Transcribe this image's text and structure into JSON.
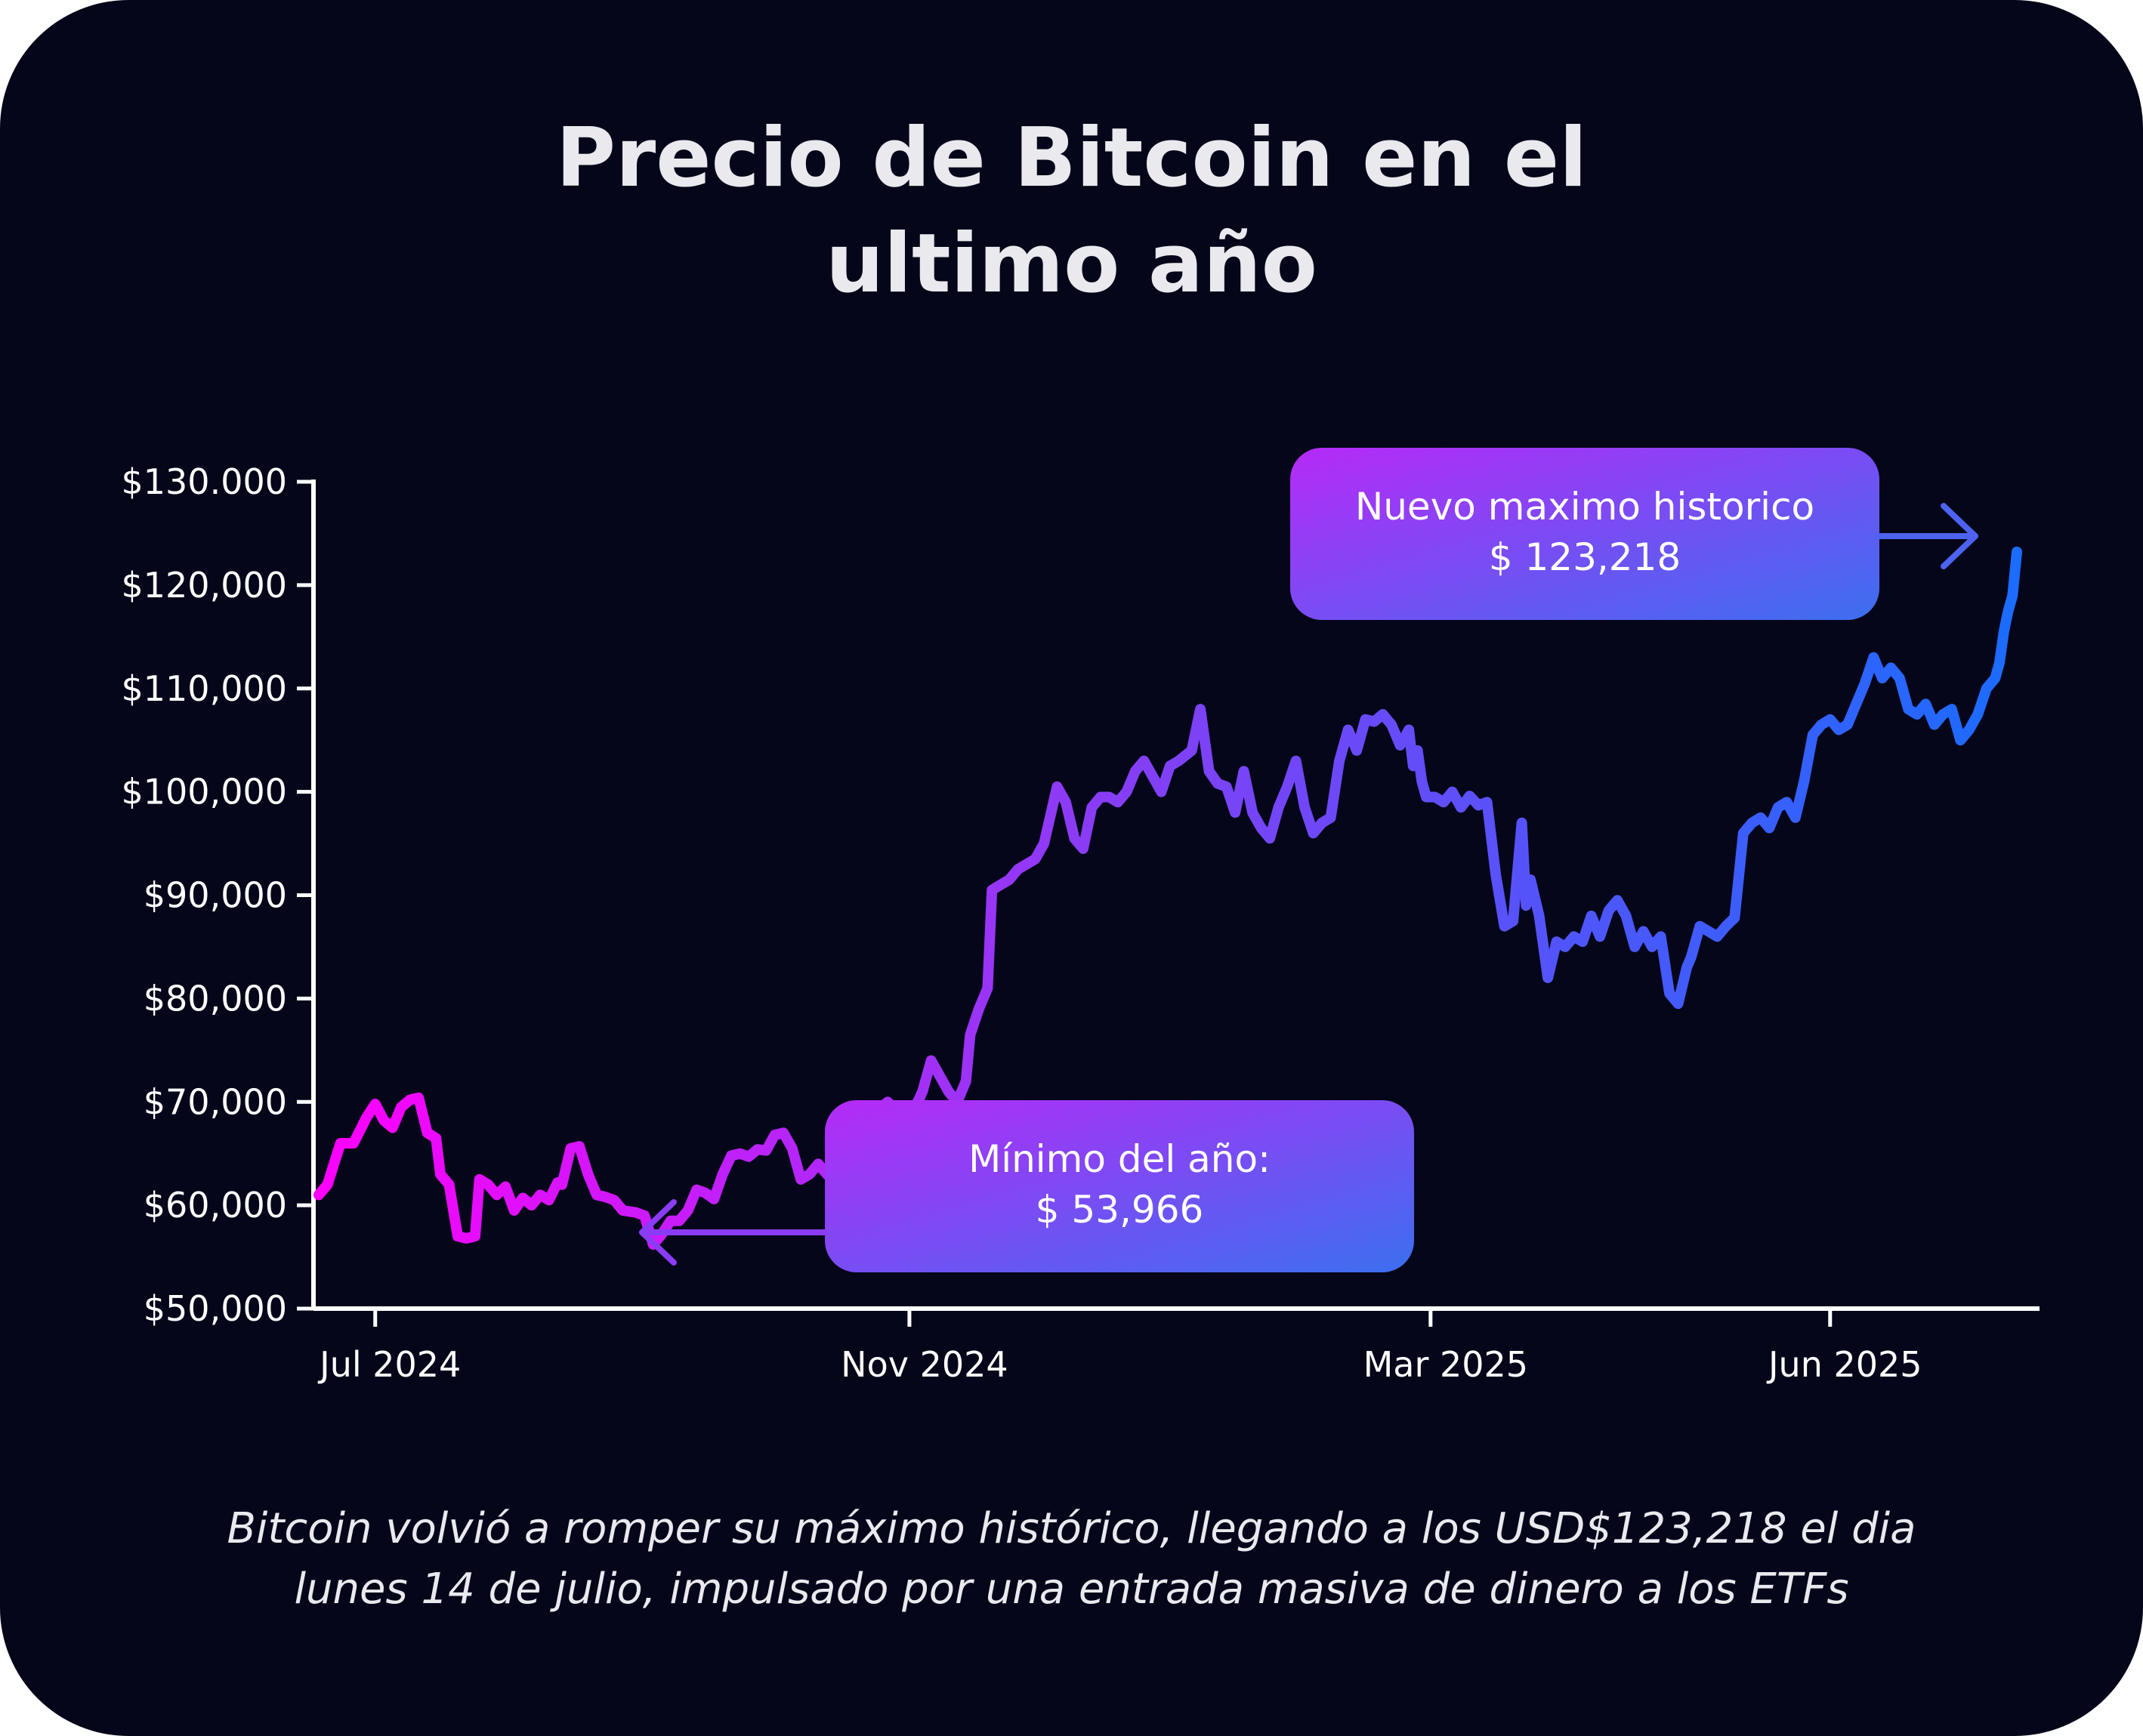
{
  "title": "Precio de Bitcoin en el\nultimo año",
  "caption": "Bitcoin volvió a romper su máximo histórico, llegando a los USD$123,218 el dia\nlunes 14 de julio, impulsado por una entrada masiva de dinero a los ETFs",
  "colors": {
    "background": "#05061a",
    "text": "#e9e9ee",
    "gradient_start": "#ff00ff",
    "gradient_mid": "#8a3cf5",
    "gradient_end": "#1a6cff",
    "callout_start": "#b62af7",
    "callout_end": "#3c6ff0"
  },
  "callouts": {
    "max": {
      "line1": "Nuevo maximo historico",
      "line2": "$ 123,218",
      "icon": "arrow-right-icon"
    },
    "min": {
      "line1": "Mínimo del año:",
      "line2": "$ 53,966",
      "icon": "arrow-left-icon"
    }
  },
  "chart_data": {
    "type": "line",
    "title": "Precio de Bitcoin en el ultimo año",
    "xlabel": "",
    "ylabel": "",
    "x_range": [
      "2024-06-18",
      "2025-07-14"
    ],
    "ylim": [
      50000,
      130000
    ],
    "yticks": [
      {
        "value": 50000,
        "label": "$50,000"
      },
      {
        "value": 60000,
        "label": "$60,000"
      },
      {
        "value": 70000,
        "label": "$70,000"
      },
      {
        "value": 80000,
        "label": "$80,000"
      },
      {
        "value": 90000,
        "label": "$90,000"
      },
      {
        "value": 100000,
        "label": "$100,000"
      },
      {
        "value": 110000,
        "label": "$110,000"
      },
      {
        "value": 120000,
        "label": "$120,000"
      },
      {
        "value": 130000,
        "label": "$130.000"
      }
    ],
    "xticks": [
      {
        "date": "2024-07-01",
        "label": "Jul 2024"
      },
      {
        "date": "2024-11-01",
        "label": "Nov 2024"
      },
      {
        "date": "2025-03-01",
        "label": "Mar 2025"
      },
      {
        "date": "2025-06-01",
        "label": "Jun 2025"
      }
    ],
    "grid": false,
    "legend": "none",
    "series": [
      {
        "points": [
          [
            "2024-06-18",
            61000
          ],
          [
            "2024-06-20",
            62000
          ],
          [
            "2024-06-23",
            66000
          ],
          [
            "2024-06-26",
            66000
          ],
          [
            "2024-06-29",
            68500
          ],
          [
            "2024-07-01",
            69800
          ],
          [
            "2024-07-03",
            68200
          ],
          [
            "2024-07-05",
            67500
          ],
          [
            "2024-07-07",
            69500
          ],
          [
            "2024-07-09",
            70200
          ],
          [
            "2024-07-11",
            70400
          ],
          [
            "2024-07-13",
            67000
          ],
          [
            "2024-07-15",
            66500
          ],
          [
            "2024-07-16",
            63000
          ],
          [
            "2024-07-18",
            62000
          ],
          [
            "2024-07-20",
            57000
          ],
          [
            "2024-07-22",
            56800
          ],
          [
            "2024-07-24",
            57000
          ],
          [
            "2024-07-25",
            62500
          ],
          [
            "2024-07-27",
            62000
          ],
          [
            "2024-07-29",
            61000
          ],
          [
            "2024-07-31",
            61800
          ],
          [
            "2024-08-02",
            59500
          ],
          [
            "2024-08-04",
            60700
          ],
          [
            "2024-08-06",
            60000
          ],
          [
            "2024-08-08",
            61000
          ],
          [
            "2024-08-10",
            60500
          ],
          [
            "2024-08-12",
            62200
          ],
          [
            "2024-08-13",
            62000
          ],
          [
            "2024-08-15",
            65500
          ],
          [
            "2024-08-17",
            65700
          ],
          [
            "2024-08-19",
            63000
          ],
          [
            "2024-08-21",
            61000
          ],
          [
            "2024-08-23",
            60800
          ],
          [
            "2024-08-25",
            60500
          ],
          [
            "2024-08-27",
            59500
          ],
          [
            "2024-08-30",
            59300
          ],
          [
            "2024-09-01",
            59000
          ],
          [
            "2024-09-03",
            56200
          ],
          [
            "2024-09-05",
            57200
          ],
          [
            "2024-09-07",
            58500
          ],
          [
            "2024-09-09",
            58500
          ],
          [
            "2024-09-11",
            59500
          ],
          [
            "2024-09-13",
            61500
          ],
          [
            "2024-09-15",
            61200
          ],
          [
            "2024-09-17",
            60600
          ],
          [
            "2024-09-19",
            63000
          ],
          [
            "2024-09-21",
            64800
          ],
          [
            "2024-09-23",
            65000
          ],
          [
            "2024-09-25",
            64700
          ],
          [
            "2024-09-27",
            65400
          ],
          [
            "2024-09-29",
            65300
          ],
          [
            "2024-10-01",
            66800
          ],
          [
            "2024-10-03",
            67000
          ],
          [
            "2024-10-05",
            65500
          ],
          [
            "2024-10-07",
            62500
          ],
          [
            "2024-10-09",
            63000
          ],
          [
            "2024-10-11",
            64000
          ],
          [
            "2024-10-13",
            63000
          ],
          [
            "2024-10-15",
            62200
          ],
          [
            "2024-10-17",
            64000
          ],
          [
            "2024-10-19",
            64700
          ],
          [
            "2024-10-21",
            68000
          ],
          [
            "2024-10-23",
            69500
          ],
          [
            "2024-10-25",
            69300
          ],
          [
            "2024-10-27",
            70000
          ],
          [
            "2024-10-29",
            69000
          ],
          [
            "2024-10-31",
            69600
          ],
          [
            "2024-11-02",
            69200
          ],
          [
            "2024-11-04",
            71000
          ],
          [
            "2024-11-06",
            74000
          ],
          [
            "2024-11-08",
            72500
          ],
          [
            "2024-11-10",
            71000
          ],
          [
            "2024-11-12",
            70000
          ],
          [
            "2024-11-14",
            72000
          ],
          [
            "2024-11-15",
            76500
          ],
          [
            "2024-11-17",
            79000
          ],
          [
            "2024-11-19",
            81000
          ],
          [
            "2024-11-20",
            90500
          ],
          [
            "2024-11-22",
            91000
          ],
          [
            "2024-11-24",
            91500
          ],
          [
            "2024-11-26",
            92500
          ],
          [
            "2024-11-28",
            93000
          ],
          [
            "2024-11-30",
            93500
          ],
          [
            "2024-12-02",
            95000
          ],
          [
            "2024-12-05",
            100500
          ],
          [
            "2024-12-07",
            99000
          ],
          [
            "2024-12-09",
            95500
          ],
          [
            "2024-12-11",
            94500
          ],
          [
            "2024-12-13",
            98500
          ],
          [
            "2024-12-15",
            99500
          ],
          [
            "2024-12-17",
            99500
          ],
          [
            "2024-12-19",
            99000
          ],
          [
            "2024-12-21",
            100000
          ],
          [
            "2024-12-23",
            102000
          ],
          [
            "2024-12-25",
            103000
          ],
          [
            "2024-12-27",
            101500
          ],
          [
            "2024-12-29",
            100000
          ],
          [
            "2024-12-31",
            102500
          ],
          [
            "2025-01-02",
            103000
          ],
          [
            "2025-01-05",
            104000
          ],
          [
            "2025-01-07",
            108000
          ],
          [
            "2025-01-09",
            102000
          ],
          [
            "2025-01-11",
            100800
          ],
          [
            "2025-01-13",
            100500
          ],
          [
            "2025-01-15",
            98000
          ],
          [
            "2025-01-17",
            102000
          ],
          [
            "2025-01-19",
            98000
          ],
          [
            "2025-01-21",
            96500
          ],
          [
            "2025-01-23",
            95500
          ],
          [
            "2025-01-25",
            98500
          ],
          [
            "2025-01-27",
            100500
          ],
          [
            "2025-01-29",
            103000
          ],
          [
            "2025-01-31",
            98500
          ],
          [
            "2025-02-02",
            96000
          ],
          [
            "2025-02-04",
            97000
          ],
          [
            "2025-02-06",
            97500
          ],
          [
            "2025-02-08",
            103000
          ],
          [
            "2025-02-10",
            106000
          ],
          [
            "2025-02-12",
            104000
          ],
          [
            "2025-02-14",
            107000
          ],
          [
            "2025-02-16",
            106800
          ],
          [
            "2025-02-18",
            107500
          ],
          [
            "2025-02-20",
            106500
          ],
          [
            "2025-02-22",
            104500
          ],
          [
            "2025-02-24",
            106000
          ],
          [
            "2025-02-25",
            102500
          ],
          [
            "2025-02-26",
            104000
          ],
          [
            "2025-02-27",
            101000
          ],
          [
            "2025-02-28",
            99500
          ],
          [
            "2025-03-02",
            99500
          ],
          [
            "2025-03-04",
            99000
          ],
          [
            "2025-03-06",
            100000
          ],
          [
            "2025-03-08",
            98500
          ],
          [
            "2025-03-10",
            99600
          ],
          [
            "2025-03-12",
            98700
          ],
          [
            "2025-03-14",
            99000
          ],
          [
            "2025-03-16",
            92000
          ],
          [
            "2025-03-18",
            87000
          ],
          [
            "2025-03-20",
            87500
          ],
          [
            "2025-03-22",
            97000
          ],
          [
            "2025-03-23",
            89000
          ],
          [
            "2025-03-24",
            91500
          ],
          [
            "2025-03-26",
            88000
          ],
          [
            "2025-03-28",
            82000
          ],
          [
            "2025-03-30",
            85500
          ],
          [
            "2025-04-01",
            85000
          ],
          [
            "2025-04-03",
            86000
          ],
          [
            "2025-04-05",
            85500
          ],
          [
            "2025-04-07",
            88000
          ],
          [
            "2025-04-09",
            86000
          ],
          [
            "2025-04-11",
            88500
          ],
          [
            "2025-04-13",
            89500
          ],
          [
            "2025-04-15",
            88000
          ],
          [
            "2025-04-17",
            85000
          ],
          [
            "2025-04-19",
            86500
          ],
          [
            "2025-04-21",
            85000
          ],
          [
            "2025-04-23",
            86000
          ],
          [
            "2025-04-25",
            80500
          ],
          [
            "2025-04-27",
            79500
          ],
          [
            "2025-04-29",
            83000
          ],
          [
            "2025-04-30",
            84000
          ],
          [
            "2025-05-02",
            87000
          ],
          [
            "2025-05-04",
            86500
          ],
          [
            "2025-05-06",
            86000
          ],
          [
            "2025-05-08",
            87000
          ],
          [
            "2025-05-10",
            87800
          ],
          [
            "2025-05-12",
            96000
          ],
          [
            "2025-05-14",
            97000
          ],
          [
            "2025-05-16",
            97500
          ],
          [
            "2025-05-18",
            96500
          ],
          [
            "2025-05-20",
            98500
          ],
          [
            "2025-05-22",
            99000
          ],
          [
            "2025-05-24",
            97500
          ],
          [
            "2025-05-26",
            101000
          ],
          [
            "2025-05-28",
            105500
          ],
          [
            "2025-05-30",
            106500
          ],
          [
            "2025-06-01",
            107000
          ],
          [
            "2025-06-03",
            106000
          ],
          [
            "2025-06-05",
            106500
          ],
          [
            "2025-06-07",
            108500
          ],
          [
            "2025-06-09",
            110500
          ],
          [
            "2025-06-11",
            113000
          ],
          [
            "2025-06-13",
            111000
          ],
          [
            "2025-06-15",
            112000
          ],
          [
            "2025-06-17",
            111000
          ],
          [
            "2025-06-19",
            108000
          ],
          [
            "2025-06-21",
            107500
          ],
          [
            "2025-06-23",
            108500
          ],
          [
            "2025-06-25",
            106500
          ],
          [
            "2025-06-27",
            107500
          ],
          [
            "2025-06-29",
            108000
          ],
          [
            "2025-07-01",
            105000
          ],
          [
            "2025-07-03",
            106000
          ],
          [
            "2025-07-05",
            107500
          ],
          [
            "2025-07-07",
            110000
          ],
          [
            "2025-07-09",
            111000
          ],
          [
            "2025-07-10",
            112500
          ],
          [
            "2025-07-11",
            115500
          ],
          [
            "2025-07-12",
            117500
          ],
          [
            "2025-07-13",
            119000
          ],
          [
            "2025-07-14",
            123218
          ]
        ]
      }
    ]
  }
}
